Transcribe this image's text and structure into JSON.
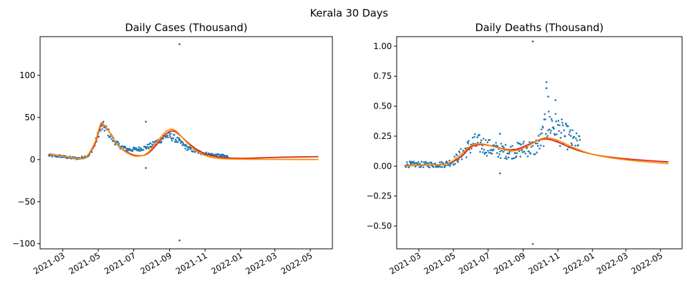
{
  "suptitle": "Kerala 30 Days",
  "colors": {
    "scatter": "#1f77b4",
    "fit_red": "#d62728",
    "fit_orange": "#ff8c00"
  },
  "chart_data": [
    {
      "type": "scatter",
      "title": "Daily Cases (Thousand)",
      "xlabel": "",
      "ylabel": "",
      "x_type": "date",
      "xlim": [
        "2021-01-21",
        "2022-06-08"
      ],
      "ylim": [
        -106,
        146
      ],
      "x_ticks": [
        "2021-03",
        "2021-05",
        "2021-07",
        "2021-09",
        "2021-11",
        "2022-01",
        "2022-03",
        "2022-05"
      ],
      "y_ticks": [
        -100,
        -50,
        0,
        50,
        100
      ],
      "y_tick_labels": [
        "−100",
        "−50",
        "0",
        "50",
        "100"
      ],
      "outliers": [
        {
          "date": "2021-09-18",
          "value": 137
        },
        {
          "date": "2021-09-18",
          "value": -96
        },
        {
          "date": "2021-07-22",
          "value": 45
        },
        {
          "date": "2021-07-22",
          "value": -10
        }
      ],
      "scatter_anchors": [
        [
          "2021-02-05",
          5
        ],
        [
          "2021-02-25",
          4
        ],
        [
          "2021-03-15",
          2
        ],
        [
          "2021-03-31",
          1.5
        ],
        [
          "2021-04-15",
          5
        ],
        [
          "2021-04-25",
          18
        ],
        [
          "2021-05-02",
          32
        ],
        [
          "2021-05-09",
          40
        ],
        [
          "2021-05-16",
          35
        ],
        [
          "2021-05-25",
          25
        ],
        [
          "2021-06-05",
          17
        ],
        [
          "2021-06-20",
          12
        ],
        [
          "2021-07-05",
          12
        ],
        [
          "2021-07-20",
          14
        ],
        [
          "2021-08-01",
          17
        ],
        [
          "2021-08-15",
          23
        ],
        [
          "2021-08-25",
          28
        ],
        [
          "2021-09-01",
          28
        ],
        [
          "2021-09-10",
          25
        ],
        [
          "2021-09-20",
          20
        ],
        [
          "2021-10-01",
          14
        ],
        [
          "2021-10-15",
          10
        ],
        [
          "2021-11-01",
          7
        ],
        [
          "2021-11-15",
          5.5
        ],
        [
          "2021-12-01",
          4.5
        ],
        [
          "2021-12-10",
          3.5
        ]
      ],
      "series": [
        {
          "name": "",
          "color": "#d62728",
          "points": [
            [
              "2021-02-05",
              6
            ],
            [
              "2021-03-01",
              4
            ],
            [
              "2021-03-25",
              1.5
            ],
            [
              "2021-04-10",
              3
            ],
            [
              "2021-04-25",
              18
            ],
            [
              "2021-05-05",
              40
            ],
            [
              "2021-05-10",
              41
            ],
            [
              "2021-05-20",
              33
            ],
            [
              "2021-06-05",
              16
            ],
            [
              "2021-06-25",
              7
            ],
            [
              "2021-07-10",
              4.5
            ],
            [
              "2021-07-25",
              7
            ],
            [
              "2021-08-10",
              18
            ],
            [
              "2021-08-25",
              30
            ],
            [
              "2021-09-05",
              34
            ],
            [
              "2021-09-15",
              31
            ],
            [
              "2021-10-01",
              21
            ],
            [
              "2021-10-20",
              11
            ],
            [
              "2021-11-10",
              5
            ],
            [
              "2021-12-01",
              2.5
            ],
            [
              "2021-12-31",
              1.5
            ],
            [
              "2022-02-01",
              2
            ],
            [
              "2022-03-15",
              2.8
            ],
            [
              "2022-05-15",
              3.5
            ]
          ]
        },
        {
          "name": "",
          "color": "#ff8c00",
          "points": [
            [
              "2021-02-05",
              6.5
            ],
            [
              "2021-03-01",
              4
            ],
            [
              "2021-03-25",
              1.5
            ],
            [
              "2021-04-10",
              3
            ],
            [
              "2021-04-25",
              20
            ],
            [
              "2021-05-05",
              42
            ],
            [
              "2021-05-10",
              42
            ],
            [
              "2021-05-20",
              33
            ],
            [
              "2021-06-05",
              16
            ],
            [
              "2021-06-25",
              6
            ],
            [
              "2021-07-10",
              4
            ],
            [
              "2021-07-25",
              8
            ],
            [
              "2021-08-10",
              21
            ],
            [
              "2021-08-25",
              33
            ],
            [
              "2021-09-05",
              36
            ],
            [
              "2021-09-15",
              32
            ],
            [
              "2021-10-01",
              20
            ],
            [
              "2021-10-20",
              9
            ],
            [
              "2021-11-10",
              3
            ],
            [
              "2021-12-01",
              1
            ],
            [
              "2021-12-31",
              0.5
            ],
            [
              "2022-02-01",
              0.3
            ],
            [
              "2022-03-15",
              0.2
            ],
            [
              "2022-05-15",
              0.1
            ]
          ]
        }
      ]
    },
    {
      "type": "scatter",
      "title": "Daily Deaths (Thousand)",
      "xlabel": "",
      "ylabel": "",
      "x_type": "date",
      "xlim": [
        "2021-01-21",
        "2022-06-08"
      ],
      "ylim": [
        -0.69,
        1.08
      ],
      "x_ticks": [
        "2021-03",
        "2021-05",
        "2021-07",
        "2021-09",
        "2021-11",
        "2022-01",
        "2022-03",
        "2022-05"
      ],
      "y_ticks": [
        -0.5,
        -0.25,
        0,
        0.25,
        0.5,
        0.75,
        1.0
      ],
      "y_tick_labels": [
        "−0.50",
        "−0.25",
        "0.00",
        "0.25",
        "0.50",
        "0.75",
        "1.00"
      ],
      "outliers": [
        {
          "date": "2021-09-18",
          "value": 1.04
        },
        {
          "date": "2021-09-18",
          "value": -0.65
        },
        {
          "date": "2021-07-22",
          "value": 0.27
        },
        {
          "date": "2021-07-22",
          "value": -0.06
        },
        {
          "date": "2021-10-12",
          "value": 0.7
        },
        {
          "date": "2021-10-12",
          "value": 0.65
        },
        {
          "date": "2021-10-28",
          "value": 0.55
        },
        {
          "date": "2021-10-15",
          "value": 0.58
        }
      ],
      "scatter_anchors": [
        [
          "2021-02-05",
          0.015
        ],
        [
          "2021-03-15",
          0.012
        ],
        [
          "2021-04-15",
          0.015
        ],
        [
          "2021-05-01",
          0.04
        ],
        [
          "2021-05-20",
          0.12
        ],
        [
          "2021-06-05",
          0.19
        ],
        [
          "2021-06-20",
          0.18
        ],
        [
          "2021-07-05",
          0.15
        ],
        [
          "2021-07-20",
          0.13
        ],
        [
          "2021-08-05",
          0.12
        ],
        [
          "2021-08-20",
          0.13
        ],
        [
          "2021-09-05",
          0.15
        ],
        [
          "2021-09-20",
          0.15
        ],
        [
          "2021-10-01",
          0.2
        ],
        [
          "2021-10-10",
          0.32
        ],
        [
          "2021-10-20",
          0.36
        ],
        [
          "2021-11-01",
          0.3
        ],
        [
          "2021-11-15",
          0.25
        ],
        [
          "2021-12-01",
          0.2
        ],
        [
          "2021-12-10",
          0.18
        ]
      ],
      "series": [
        {
          "name": "",
          "color": "#d62728",
          "points": [
            [
              "2021-02-05",
              0.005
            ],
            [
              "2021-03-15",
              0.01
            ],
            [
              "2021-04-20",
              0.02
            ],
            [
              "2021-05-15",
              0.08
            ],
            [
              "2021-06-01",
              0.16
            ],
            [
              "2021-06-20",
              0.18
            ],
            [
              "2021-07-10",
              0.165
            ],
            [
              "2021-08-01",
              0.14
            ],
            [
              "2021-08-20",
              0.14
            ],
            [
              "2021-09-10",
              0.18
            ],
            [
              "2021-10-01",
              0.22
            ],
            [
              "2021-10-15",
              0.225
            ],
            [
              "2021-11-01",
              0.2
            ],
            [
              "2021-12-01",
              0.14
            ],
            [
              "2021-12-31",
              0.1
            ],
            [
              "2022-02-01",
              0.075
            ],
            [
              "2022-03-15",
              0.055
            ],
            [
              "2022-05-15",
              0.035
            ]
          ]
        },
        {
          "name": "",
          "color": "#ff8c00",
          "points": [
            [
              "2021-02-05",
              0.0
            ],
            [
              "2021-03-15",
              0.01
            ],
            [
              "2021-04-20",
              0.02
            ],
            [
              "2021-05-15",
              0.1
            ],
            [
              "2021-06-01",
              0.17
            ],
            [
              "2021-06-20",
              0.185
            ],
            [
              "2021-07-10",
              0.165
            ],
            [
              "2021-08-01",
              0.135
            ],
            [
              "2021-08-20",
              0.13
            ],
            [
              "2021-09-10",
              0.17
            ],
            [
              "2021-10-01",
              0.225
            ],
            [
              "2021-10-15",
              0.235
            ],
            [
              "2021-11-01",
              0.215
            ],
            [
              "2021-12-01",
              0.15
            ],
            [
              "2021-12-31",
              0.1
            ],
            [
              "2022-02-01",
              0.07
            ],
            [
              "2022-03-15",
              0.045
            ],
            [
              "2022-05-15",
              0.02
            ]
          ]
        }
      ]
    }
  ]
}
